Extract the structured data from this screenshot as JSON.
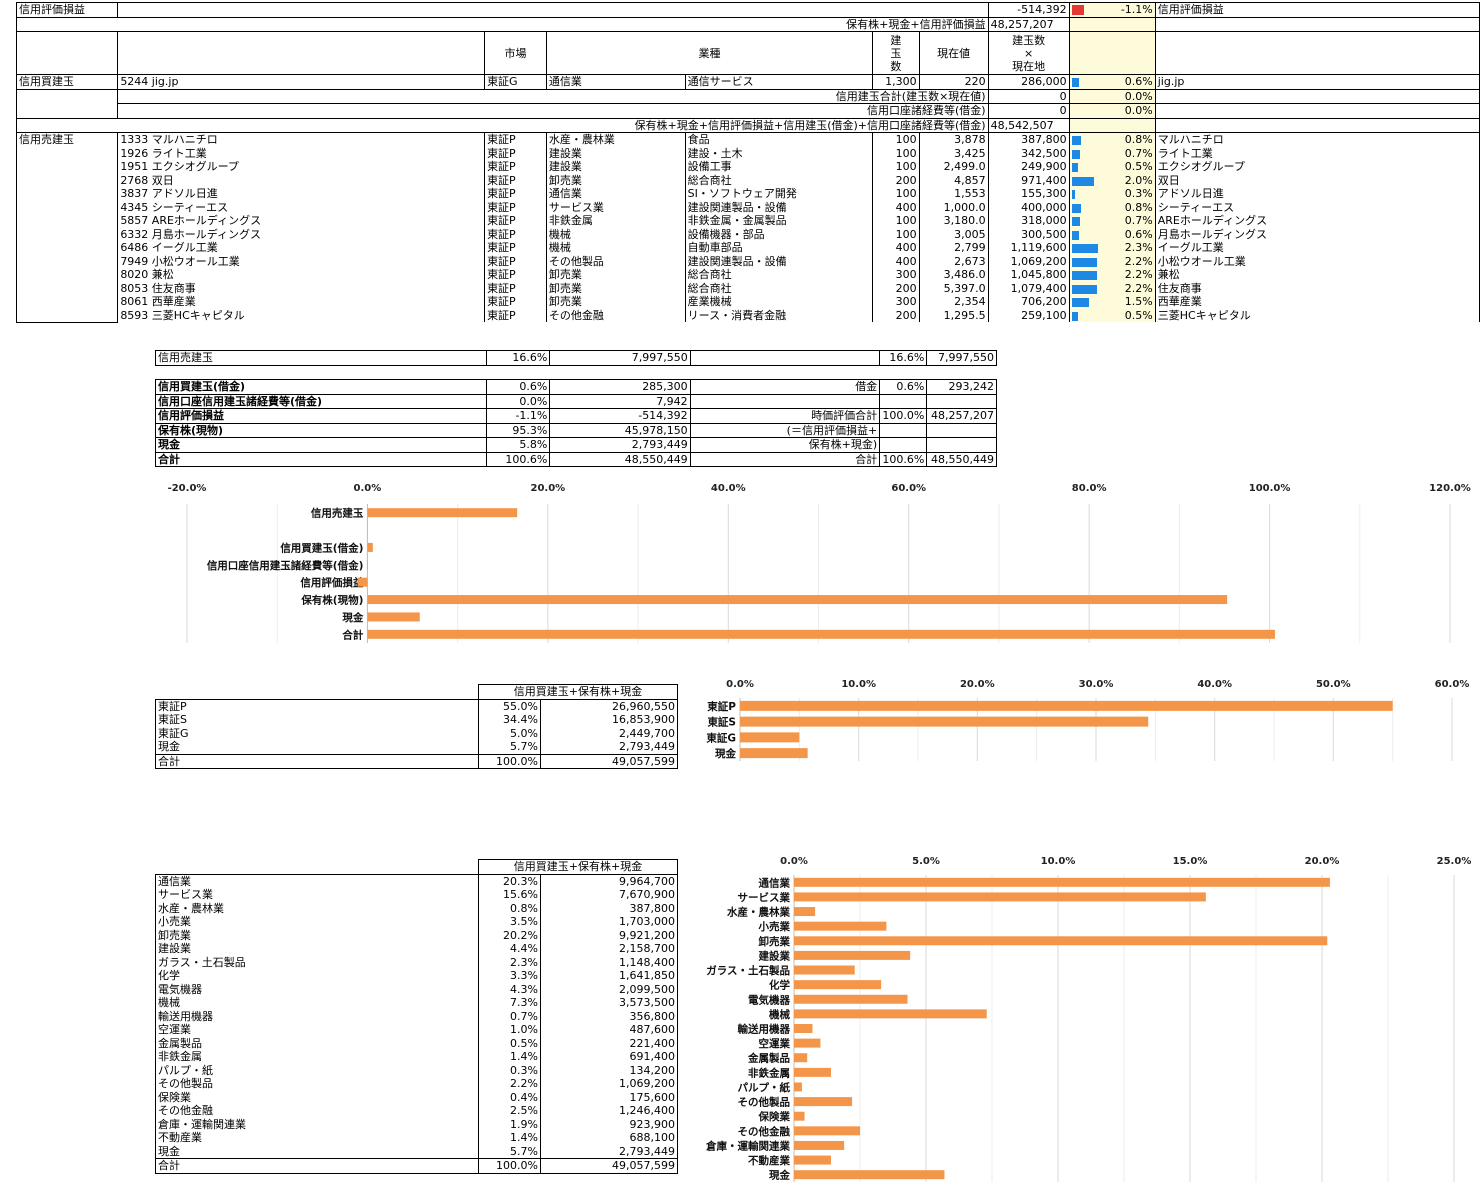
{
  "top": {
    "label_unrealized": "信用評価損益",
    "unrealized_value": "-514,392",
    "unrealized_pct": "-1.1%",
    "unrealized_pct_num": -1.1,
    "unrealized_label_right": "信用評価損益",
    "sum_label": "保有株+現金+信用評価損益",
    "sum_value": "48,257,207"
  },
  "headers": {
    "market": "市場",
    "industry": "業種",
    "qty": "建\n玉\n数",
    "price": "現在値",
    "qty_x_price": "建玉数\n×\n現在地"
  },
  "long": {
    "section_label": "信用買建玉",
    "rows": [
      {
        "code_name": "5244 jig.jp",
        "market": "東証G",
        "sector": "通信業",
        "subsector": "通信サービス",
        "qty": "1,300",
        "price": "220",
        "amount": "286,000",
        "pct": "0.6%",
        "pct_num": 0.6,
        "name": "jig.jp"
      }
    ],
    "total_label": "信用建玉合計(建玉数×現在値)",
    "total_value": "0",
    "total_pct": "0.0%",
    "fee_label": "信用口座諸経費等(借金)",
    "fee_value": "0",
    "fee_pct": "0.0%",
    "grand_label": "保有株+現金+信用評価損益+信用建玉(借金)+信用口座諸経費等(借金)",
    "grand_value": "48,542,507"
  },
  "short": {
    "section_label": "信用売建玉",
    "rows": [
      {
        "code_name": "1333 マルハニチロ",
        "market": "東証P",
        "sector": "水産・農林業",
        "subsector": "食品",
        "qty": "100",
        "price": "3,878",
        "amount": "387,800",
        "pct": "0.8%",
        "pct_num": 0.8,
        "name": "マルハニチロ"
      },
      {
        "code_name": "1926 ライト工業",
        "market": "東証P",
        "sector": "建設業",
        "subsector": "建設・土木",
        "qty": "100",
        "price": "3,425",
        "amount": "342,500",
        "pct": "0.7%",
        "pct_num": 0.7,
        "name": "ライト工業"
      },
      {
        "code_name": "1951 エクシオグループ",
        "market": "東証P",
        "sector": "建設業",
        "subsector": "設備工事",
        "qty": "100",
        "price": "2,499.0",
        "amount": "249,900",
        "pct": "0.5%",
        "pct_num": 0.5,
        "name": "エクシオグループ"
      },
      {
        "code_name": "2768 双日",
        "market": "東証P",
        "sector": "卸売業",
        "subsector": "総合商社",
        "qty": "200",
        "price": "4,857",
        "amount": "971,400",
        "pct": "2.0%",
        "pct_num": 2.0,
        "name": "双日"
      },
      {
        "code_name": "3837 アドソル日進",
        "market": "東証P",
        "sector": "通信業",
        "subsector": "SI・ソフトウェア開発",
        "qty": "100",
        "price": "1,553",
        "amount": "155,300",
        "pct": "0.3%",
        "pct_num": 0.3,
        "name": "アドソル日進"
      },
      {
        "code_name": "4345 シーティーエス",
        "market": "東証P",
        "sector": "サービス業",
        "subsector": "建設関連製品・設備",
        "qty": "400",
        "price": "1,000.0",
        "amount": "400,000",
        "pct": "0.8%",
        "pct_num": 0.8,
        "name": "シーティーエス"
      },
      {
        "code_name": "5857 AREホールディングス",
        "market": "東証P",
        "sector": "非鉄金属",
        "subsector": "非鉄金属・金属製品",
        "qty": "100",
        "price": "3,180.0",
        "amount": "318,000",
        "pct": "0.7%",
        "pct_num": 0.7,
        "name": "AREホールディングス"
      },
      {
        "code_name": "6332 月島ホールディングス",
        "market": "東証P",
        "sector": "機械",
        "subsector": "設備機器・部品",
        "qty": "100",
        "price": "3,005",
        "amount": "300,500",
        "pct": "0.6%",
        "pct_num": 0.6,
        "name": "月島ホールディングス"
      },
      {
        "code_name": "6486 イーグル工業",
        "market": "東証P",
        "sector": "機械",
        "subsector": "自動車部品",
        "qty": "400",
        "price": "2,799",
        "amount": "1,119,600",
        "pct": "2.3%",
        "pct_num": 2.3,
        "name": "イーグル工業"
      },
      {
        "code_name": "7949 小松ウオール工業",
        "market": "東証P",
        "sector": "その他製品",
        "subsector": "建設関連製品・設備",
        "qty": "400",
        "price": "2,673",
        "amount": "1,069,200",
        "pct": "2.2%",
        "pct_num": 2.2,
        "name": "小松ウオール工業"
      },
      {
        "code_name": "8020 兼松",
        "market": "東証P",
        "sector": "卸売業",
        "subsector": "総合商社",
        "qty": "300",
        "price": "3,486.0",
        "amount": "1,045,800",
        "pct": "2.2%",
        "pct_num": 2.2,
        "name": "兼松"
      },
      {
        "code_name": "8053 住友商事",
        "market": "東証P",
        "sector": "卸売業",
        "subsector": "総合商社",
        "qty": "200",
        "price": "5,397.0",
        "amount": "1,079,400",
        "pct": "2.2%",
        "pct_num": 2.2,
        "name": "住友商事"
      },
      {
        "code_name": "8061 西華産業",
        "market": "東証P",
        "sector": "卸売業",
        "subsector": "産業機械",
        "qty": "300",
        "price": "2,354",
        "amount": "706,200",
        "pct": "1.5%",
        "pct_num": 1.5,
        "name": "西華産業"
      },
      {
        "code_name": "8593 三菱HCキャピタル",
        "market": "東証P",
        "sector": "その他金融",
        "subsector": "リース・消費者金融",
        "qty": "200",
        "price": "1,295.5",
        "amount": "259,100",
        "pct": "0.5%",
        "pct_num": 0.5,
        "name": "三菱HCキャピタル"
      }
    ]
  },
  "short_summary": {
    "label": "信用売建玉",
    "pct": "16.6%",
    "value": "7,997,550",
    "pct2": "16.6%",
    "value2": "7,997,550"
  },
  "summary": {
    "rows": [
      {
        "label": "信用買建玉(借金)",
        "pct": "0.6%",
        "value": "285,300"
      },
      {
        "label": "信用口座信用建玉諸経費等(借金)",
        "pct": "0.0%",
        "value": "7,942"
      },
      {
        "label": "信用評価損益",
        "pct": "-1.1%",
        "value": "-514,392"
      },
      {
        "label": "保有株(現物)",
        "pct": "95.3%",
        "value": "45,978,150"
      },
      {
        "label": "現金",
        "pct": "5.8%",
        "value": "2,793,449"
      },
      {
        "label": "合計",
        "pct": "100.6%",
        "value": "48,550,449"
      }
    ],
    "right": {
      "debt_label": "借金",
      "debt_pct": "0.6%",
      "debt_value": "293,242",
      "mv_label": "時価評価合計",
      "mv_pct": "100.0%",
      "mv_value": "48,257,207",
      "mv_note1": "(＝信用評価損益+",
      "mv_note2": "保有株+現金)",
      "total_label": "合計",
      "total_pct": "100.6%",
      "total_value": "48,550,449"
    }
  },
  "market_table": {
    "header": "信用買建玉+保有株+現金",
    "rows": [
      {
        "label": "東証P",
        "pct": "55.0%",
        "value": "26,960,550"
      },
      {
        "label": "東証S",
        "pct": "34.4%",
        "value": "16,853,900"
      },
      {
        "label": "東証G",
        "pct": "5.0%",
        "value": "2,449,700"
      },
      {
        "label": "現金",
        "pct": "5.7%",
        "value": "2,793,449"
      },
      {
        "label": "合計",
        "pct": "100.0%",
        "value": "49,057,599"
      }
    ]
  },
  "sector_table": {
    "header": "信用買建玉+保有株+現金",
    "rows": [
      {
        "label": "通信業",
        "pct": "20.3%",
        "value": "9,964,700"
      },
      {
        "label": "サービス業",
        "pct": "15.6%",
        "value": "7,670,900"
      },
      {
        "label": "水産・農林業",
        "pct": "0.8%",
        "value": "387,800"
      },
      {
        "label": "小売業",
        "pct": "3.5%",
        "value": "1,703,000"
      },
      {
        "label": "卸売業",
        "pct": "20.2%",
        "value": "9,921,200"
      },
      {
        "label": "建設業",
        "pct": "4.4%",
        "value": "2,158,700"
      },
      {
        "label": "ガラス・土石製品",
        "pct": "2.3%",
        "value": "1,148,400"
      },
      {
        "label": "化学",
        "pct": "3.3%",
        "value": "1,641,850"
      },
      {
        "label": "電気機器",
        "pct": "4.3%",
        "value": "2,099,500"
      },
      {
        "label": "機械",
        "pct": "7.3%",
        "value": "3,573,500"
      },
      {
        "label": "輸送用機器",
        "pct": "0.7%",
        "value": "356,800"
      },
      {
        "label": "空運業",
        "pct": "1.0%",
        "value": "487,600"
      },
      {
        "label": "金属製品",
        "pct": "0.5%",
        "value": "221,400"
      },
      {
        "label": "非鉄金属",
        "pct": "1.4%",
        "value": "691,400"
      },
      {
        "label": "パルプ・紙",
        "pct": "0.3%",
        "value": "134,200"
      },
      {
        "label": "その他製品",
        "pct": "2.2%",
        "value": "1,069,200"
      },
      {
        "label": "保険業",
        "pct": "0.4%",
        "value": "175,600"
      },
      {
        "label": "その他金融",
        "pct": "2.5%",
        "value": "1,246,400"
      },
      {
        "label": "倉庫・運輸関連業",
        "pct": "1.9%",
        "value": "923,900"
      },
      {
        "label": "不動産業",
        "pct": "1.4%",
        "value": "688,100"
      },
      {
        "label": "現金",
        "pct": "5.7%",
        "value": "2,793,449"
      },
      {
        "label": "合計",
        "pct": "100.0%",
        "value": "49,057,599"
      }
    ]
  },
  "chart_data": [
    {
      "type": "bar",
      "orientation": "horizontal",
      "categories": [
        "信用売建玉",
        "",
        "信用買建玉(借金)",
        "信用口座信用建玉諸経費等(借金)",
        "信用評価損益",
        "保有株(現物)",
        "現金",
        "合計"
      ],
      "values": [
        16.6,
        null,
        0.6,
        0.0,
        -1.1,
        95.3,
        5.8,
        100.6
      ],
      "xlim": [
        -20,
        120
      ],
      "xticks": [
        "-20.0%",
        "0.0%",
        "20.0%",
        "40.0%",
        "60.0%",
        "80.0%",
        "100.0%",
        "120.0%"
      ],
      "grid": true,
      "color": "#f4964a"
    },
    {
      "type": "bar",
      "orientation": "horizontal",
      "categories": [
        "東証P",
        "東証S",
        "東証G",
        "現金"
      ],
      "values": [
        55.0,
        34.4,
        5.0,
        5.7
      ],
      "xlim": [
        0,
        60
      ],
      "xticks": [
        "0.0%",
        "10.0%",
        "20.0%",
        "30.0%",
        "40.0%",
        "50.0%",
        "60.0%"
      ],
      "grid": true,
      "color": "#f4964a"
    },
    {
      "type": "bar",
      "orientation": "horizontal",
      "categories": [
        "通信業",
        "サービス業",
        "水産・農林業",
        "小売業",
        "卸売業",
        "建設業",
        "ガラス・土石製品",
        "化学",
        "電気機器",
        "機械",
        "輸送用機器",
        "空運業",
        "金属製品",
        "非鉄金属",
        "パルプ・紙",
        "その他製品",
        "保険業",
        "その他金融",
        "倉庫・運輸関連業",
        "不動産業",
        "現金"
      ],
      "values": [
        20.3,
        15.6,
        0.8,
        3.5,
        20.2,
        4.4,
        2.3,
        3.3,
        4.3,
        7.3,
        0.7,
        1.0,
        0.5,
        1.4,
        0.3,
        2.2,
        0.4,
        2.5,
        1.9,
        1.4,
        5.7
      ],
      "xlim": [
        0,
        25
      ],
      "xticks": [
        "0.0%",
        "5.0%",
        "10.0%",
        "15.0%",
        "20.0%",
        "25.0%"
      ],
      "grid": true,
      "color": "#f4964a"
    }
  ]
}
